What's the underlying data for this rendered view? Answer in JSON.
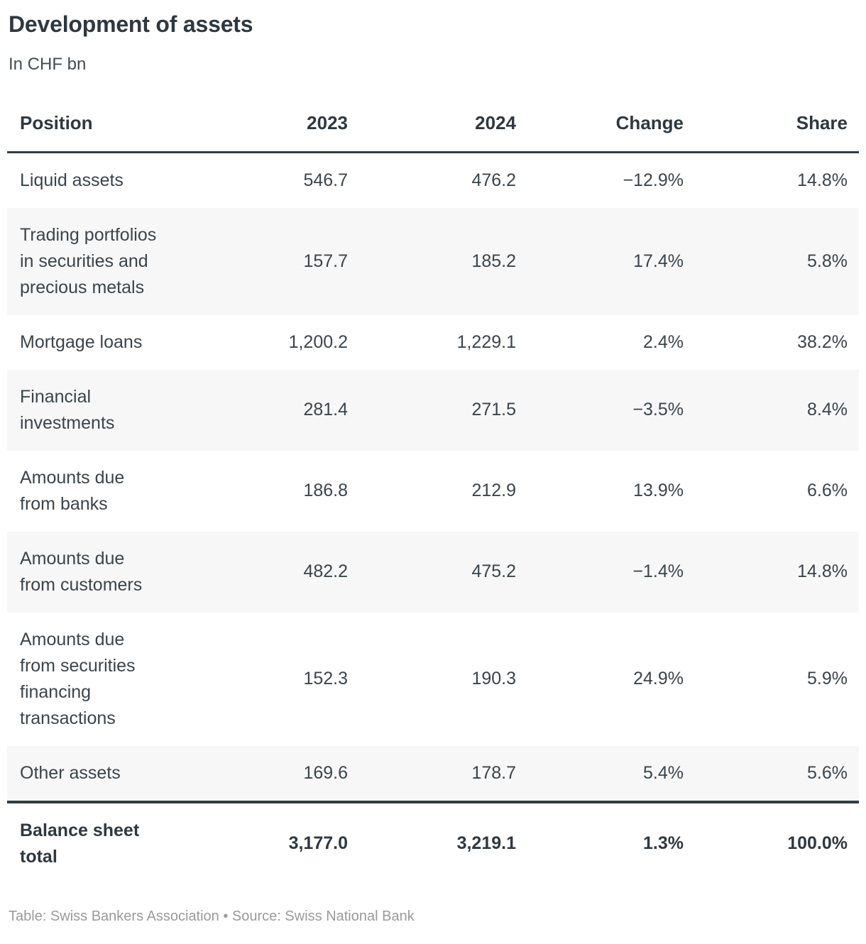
{
  "header": {
    "title": "Development of assets",
    "subtitle": "In CHF bn"
  },
  "chart_data": {
    "type": "table",
    "title": "Development of assets",
    "subtitle": "In CHF bn",
    "unit": "CHF bn",
    "columns": [
      "Position",
      "2023",
      "2024",
      "Change",
      "Share"
    ],
    "rows": [
      {
        "position": "Liquid assets",
        "y2023": "546.7",
        "y2024": "476.2",
        "change": "−12.9%",
        "share": "14.8%",
        "is_total": false
      },
      {
        "position": "Trading portfolios\nin securities and\nprecious metals",
        "y2023": "157.7",
        "y2024": "185.2",
        "change": "17.4%",
        "share": "5.8%",
        "is_total": false
      },
      {
        "position": "Mortgage loans",
        "y2023": "1,200.2",
        "y2024": "1,229.1",
        "change": "2.4%",
        "share": "38.2%",
        "is_total": false
      },
      {
        "position": "Financial\ninvestments",
        "y2023": "281.4",
        "y2024": "271.5",
        "change": "−3.5%",
        "share": "8.4%",
        "is_total": false
      },
      {
        "position": "Amounts due\nfrom banks",
        "y2023": "186.8",
        "y2024": "212.9",
        "change": "13.9%",
        "share": "6.6%",
        "is_total": false
      },
      {
        "position": "Amounts due\nfrom customers",
        "y2023": "482.2",
        "y2024": "475.2",
        "change": "−1.4%",
        "share": "14.8%",
        "is_total": false
      },
      {
        "position": "Amounts due\nfrom securities\nfinancing\ntransactions",
        "y2023": "152.3",
        "y2024": "190.3",
        "change": "24.9%",
        "share": "5.9%",
        "is_total": false
      },
      {
        "position": "Other assets",
        "y2023": "169.6",
        "y2024": "178.7",
        "change": "5.4%",
        "share": "5.6%",
        "is_total": false
      },
      {
        "position": "Balance sheet\ntotal",
        "y2023": "3,177.0",
        "y2024": "3,219.1",
        "change": "1.3%",
        "share": "100.0%",
        "is_total": true
      }
    ]
  },
  "footer": {
    "credit": "Table: Swiss Bankers Association • Source: Swiss National Bank"
  },
  "colors": {
    "text_dark": "#2e3840",
    "text_body": "#3a444b",
    "row_shaded": "#f7f7f7",
    "border_dark": "#333c43",
    "credit_gray": "#9a9a9a"
  }
}
